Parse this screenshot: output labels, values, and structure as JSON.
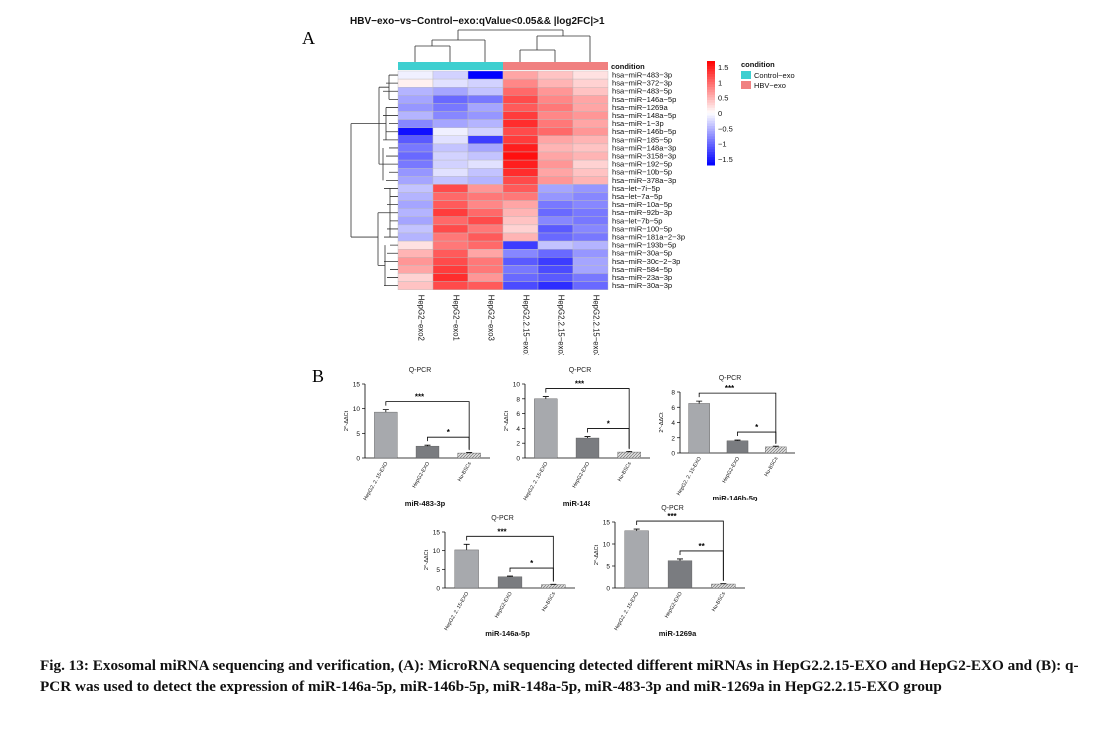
{
  "panels": {
    "a_label": "A",
    "b_label": "B"
  },
  "heatmap": {
    "title": "HBV−exo−vs−Control−exo:qValue<0.05&& |log2FC|>1",
    "condition_label": "condition",
    "rows": [
      "hsa−miR−483−3p",
      "hsa−miR−372−3p",
      "hsa−miR−483−5p",
      "hsa−miR−146a−5p",
      "hsa−miR−1269a",
      "hsa−miR−148a−5p",
      "hsa−miR−1−3p",
      "hsa−miR−146b−5p",
      "hsa−miR−185−5p",
      "hsa−miR−148a−3p",
      "hsa−miR−3158−3p",
      "hsa−miR−192−5p",
      "hsa−miR−10b−5p",
      "hsa−miR−378a−3p",
      "hsa−let−7i−5p",
      "hsa−let−7a−5p",
      "hsa−miR−10a−5p",
      "hsa−miR−92b−3p",
      "hsa−let−7b−5p",
      "hsa−miR−100−5p",
      "hsa−miR−181a−2−3p",
      "hsa−miR−193b−5p",
      "hsa−miR−30a−5p",
      "hsa−miR−30c−2−3p",
      "hsa−miR−584−5p",
      "hsa−miR−23a−3p",
      "hsa−miR−30a−3p"
    ],
    "columns": [
      "HepG2−exo2",
      "HepG2−exo1",
      "HepG2−exo3",
      "HepG2.2.15−exo1",
      "HepG2.2.15−exo2",
      "HepG2.2.15−exo3"
    ],
    "column_condition": [
      "Control−exo",
      "Control−exo",
      "Control−exo",
      "HBV−exo",
      "HBV−exo",
      "HBV−exo"
    ],
    "values": [
      [
        -0.1,
        -0.3,
        -1.7,
        0.6,
        0.4,
        0.2
      ],
      [
        0.1,
        -0.2,
        -0.3,
        0.8,
        0.5,
        0.3
      ],
      [
        -0.5,
        -0.6,
        -0.4,
        1.0,
        0.7,
        0.4
      ],
      [
        -0.6,
        -1.0,
        -0.9,
        1.2,
        0.8,
        0.6
      ],
      [
        -0.7,
        -0.9,
        -0.6,
        1.1,
        0.9,
        0.6
      ],
      [
        -0.5,
        -0.8,
        -0.7,
        1.3,
        0.8,
        0.7
      ],
      [
        -0.8,
        -0.6,
        -0.5,
        1.4,
        0.9,
        0.6
      ],
      [
        -1.6,
        -0.1,
        -0.3,
        1.2,
        1.0,
        0.7
      ],
      [
        -1.1,
        -0.2,
        -1.3,
        1.3,
        0.6,
        0.5
      ],
      [
        -0.9,
        -0.4,
        -0.6,
        1.5,
        0.5,
        0.4
      ],
      [
        -1.0,
        -0.3,
        -0.4,
        1.6,
        0.6,
        0.5
      ],
      [
        -0.9,
        -0.3,
        -0.2,
        1.5,
        0.7,
        0.3
      ],
      [
        -0.7,
        -0.2,
        -0.4,
        1.4,
        0.6,
        0.4
      ],
      [
        -0.6,
        -0.4,
        -0.5,
        1.2,
        0.7,
        0.5
      ],
      [
        -0.4,
        1.2,
        0.7,
        1.1,
        -0.6,
        -0.7
      ],
      [
        -0.5,
        1.0,
        0.9,
        0.9,
        -0.7,
        -0.8
      ],
      [
        -0.6,
        1.1,
        0.8,
        0.6,
        -0.9,
        -0.8
      ],
      [
        -0.5,
        1.3,
        1.0,
        0.5,
        -1.0,
        -0.9
      ],
      [
        -0.6,
        1.0,
        1.2,
        0.4,
        -0.8,
        -0.9
      ],
      [
        -0.4,
        1.2,
        0.9,
        0.3,
        -1.1,
        -0.8
      ],
      [
        -0.5,
        0.9,
        1.1,
        0.5,
        -1.0,
        -0.9
      ],
      [
        0.2,
        0.9,
        1.0,
        -1.3,
        -0.4,
        -0.5
      ],
      [
        0.5,
        1.1,
        0.6,
        -0.8,
        -1.0,
        -0.7
      ],
      [
        0.7,
        1.2,
        0.9,
        -1.1,
        -1.3,
        -0.6
      ],
      [
        0.6,
        1.3,
        0.9,
        -0.9,
        -1.2,
        -0.6
      ],
      [
        0.3,
        1.4,
        0.7,
        -1.0,
        -1.1,
        -0.9
      ],
      [
        0.4,
        1.2,
        1.1,
        -1.2,
        -1.4,
        -1.0
      ]
    ],
    "scale_ticks": [
      "1.5",
      "1",
      "0.5",
      "0",
      "−0.5",
      "−1",
      "−1.5"
    ],
    "legend": {
      "title": "condition",
      "items": [
        {
          "label": "Control−exo",
          "color": "#3ecfd0"
        },
        {
          "label": "HBV−exo",
          "color": "#f08080"
        }
      ]
    },
    "colors": {
      "high": "#ff0000",
      "mid": "#ffffff",
      "low": "#0000ff"
    }
  },
  "qpcr_charts": [
    {
      "header": "Q-PCR",
      "name": "miR-483-3p",
      "ylabel": "2^-ΔΔCt",
      "yticks": [
        "0",
        "5",
        "10",
        "15"
      ],
      "ymax": 15,
      "categories": [
        "HepG2. 2. 15-EXO",
        "HepG2-EXO",
        "Hu-BSCs"
      ],
      "values": [
        9.3,
        2.4,
        1.0
      ],
      "errors": [
        0.5,
        0.2,
        0.1
      ],
      "sig": [
        "***",
        "*"
      ]
    },
    {
      "header": "Q-PCR",
      "name": "miR-148a-5p",
      "ylabel": "2^-ΔΔCt",
      "yticks": [
        "0",
        "2",
        "4",
        "6",
        "8",
        "10"
      ],
      "ymax": 10,
      "categories": [
        "HepG2. 2. 15-EXO",
        "HepG2-EXO",
        "Hu-BSCs"
      ],
      "values": [
        8.0,
        2.7,
        0.8
      ],
      "errors": [
        0.3,
        0.2,
        0.1
      ],
      "sig": [
        "***",
        "*"
      ]
    },
    {
      "header": "Q-PCR",
      "name": "miR-146b-5p",
      "ylabel": "2^-ΔΔCt",
      "yticks": [
        "0",
        "2",
        "4",
        "6",
        "8"
      ],
      "ymax": 8,
      "categories": [
        "HepG2. 2. 15-EXO",
        "HepG2-EXO",
        "Hu-BSCs"
      ],
      "values": [
        6.5,
        1.6,
        0.8
      ],
      "errors": [
        0.3,
        0.1,
        0.1
      ],
      "sig": [
        "***",
        "*"
      ]
    },
    {
      "header": "Q-PCR",
      "name": "miR-146a-5p",
      "ylabel": "2^-ΔΔCt",
      "yticks": [
        "0",
        "5",
        "10",
        "15"
      ],
      "ymax": 15,
      "categories": [
        "HepG2. 2. 15-EXO",
        "HepG2-EXO",
        "Hu-BSCs"
      ],
      "values": [
        10.2,
        3.0,
        0.9
      ],
      "errors": [
        1.5,
        0.2,
        0.1
      ],
      "sig": [
        "***",
        "*"
      ]
    },
    {
      "header": "Q-PCR",
      "name": "miR-1269a",
      "ylabel": "2^-ΔΔCt",
      "yticks": [
        "0",
        "5",
        "10",
        "15"
      ],
      "ymax": 15,
      "categories": [
        "HepG2. 2. 15-EXO",
        "HepG2-EXO",
        "Hu-BSCs"
      ],
      "values": [
        13.0,
        6.2,
        0.9
      ],
      "errors": [
        0.4,
        0.4,
        0.1
      ],
      "sig": [
        "***",
        "**"
      ]
    }
  ],
  "caption": "Fig. 13: Exosomal miRNA sequencing and verification, (A): MicroRNA sequencing detected different miRNAs in HepG2.2.15-EXO and HepG2-EXO and (B): q-PCR was used to detect the expression of miR-146a-5p, miR-146b-5p, miR-148a-5p, miR-483-3p and miR-1269a in HepG2.2.15-EXO group",
  "chart_data": [
    {
      "type": "heatmap",
      "title": "HBV−exo−vs−Control−exo:qValue<0.05&& |log2FC|>1",
      "note": "values estimated from colour scale"
    },
    {
      "type": "bar",
      "title": "Q-PCR",
      "xlabel": "miR-483-3p",
      "ylabel": "2^-ΔΔCt",
      "ylim": [
        0,
        15
      ],
      "categories": [
        "HepG2. 2. 15-EXO",
        "HepG2-EXO",
        "Hu-BSCs"
      ],
      "values": [
        9.3,
        2.4,
        1.0
      ]
    },
    {
      "type": "bar",
      "title": "Q-PCR",
      "xlabel": "miR-148a-5p",
      "ylabel": "2^-ΔΔCt",
      "ylim": [
        0,
        10
      ],
      "categories": [
        "HepG2. 2. 15-EXO",
        "HepG2-EXO",
        "Hu-BSCs"
      ],
      "values": [
        8.0,
        2.7,
        0.8
      ]
    },
    {
      "type": "bar",
      "title": "Q-PCR",
      "xlabel": "miR-146b-5p",
      "ylabel": "2^-ΔΔCt",
      "ylim": [
        0,
        8
      ],
      "categories": [
        "HepG2. 2. 15-EXO",
        "HepG2-EXO",
        "Hu-BSCs"
      ],
      "values": [
        6.5,
        1.6,
        0.8
      ]
    },
    {
      "type": "bar",
      "title": "Q-PCR",
      "xlabel": "miR-146a-5p",
      "ylabel": "2^-ΔΔCt",
      "ylim": [
        0,
        15
      ],
      "categories": [
        "HepG2. 2. 15-EXO",
        "HepG2-EXO",
        "Hu-BSCs"
      ],
      "values": [
        10.2,
        3.0,
        0.9
      ]
    },
    {
      "type": "bar",
      "title": "Q-PCR",
      "xlabel": "miR-1269a",
      "ylabel": "2^-ΔΔCt",
      "ylim": [
        0,
        15
      ],
      "categories": [
        "HepG2. 2. 15-EXO",
        "HepG2-EXO",
        "Hu-BSCs"
      ],
      "values": [
        13.0,
        6.2,
        0.9
      ]
    }
  ]
}
